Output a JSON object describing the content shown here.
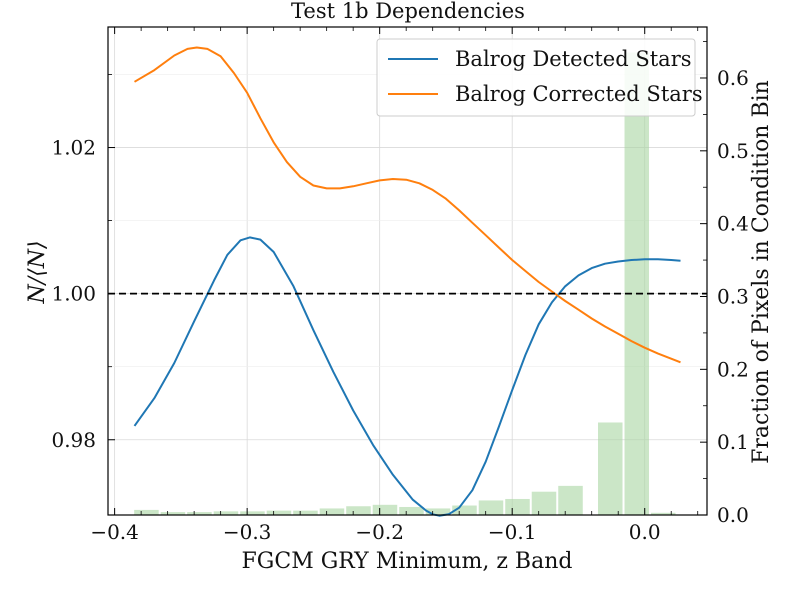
{
  "chart_data": {
    "type": "line",
    "title": "Test 1b Dependencies",
    "xlabel": "FGCM GRY Minimum, z Band",
    "ylabel": "N/⟨N⟩",
    "ylabel_right": "Fraction of Pixels in Condition Bin",
    "xlim": [
      -0.405,
      0.047
    ],
    "ylim": [
      0.9697,
      1.0365
    ],
    "ylim_right": [
      0.0,
      0.67
    ],
    "x_ticks": [
      -0.4,
      -0.3,
      -0.2,
      -0.1,
      0.0
    ],
    "x_tick_labels": [
      "−0.4",
      "−0.3",
      "−0.2",
      "−0.1",
      "0.0"
    ],
    "y_ticks": [
      0.98,
      1.0,
      1.02
    ],
    "y_tick_labels": [
      "0.98",
      "1.00",
      "1.02"
    ],
    "y_minor_ticks": [
      0.99,
      1.01,
      1.03
    ],
    "y_right_ticks": [
      0.0,
      0.1,
      0.2,
      0.3,
      0.4,
      0.5,
      0.6
    ],
    "y_right_tick_labels": [
      "0.0",
      "0.1",
      "0.2",
      "0.3",
      "0.4",
      "0.5",
      "0.6"
    ],
    "grid": true,
    "legend_position": "top-right",
    "reference_line": {
      "y": 1.0,
      "style": "dashed",
      "color": "#000000"
    },
    "series": [
      {
        "name": "Balrog Detected Stars",
        "color": "#1f77b4",
        "x": [
          -0.385,
          -0.37,
          -0.355,
          -0.34,
          -0.325,
          -0.315,
          -0.305,
          -0.298,
          -0.29,
          -0.28,
          -0.265,
          -0.25,
          -0.235,
          -0.22,
          -0.205,
          -0.19,
          -0.175,
          -0.165,
          -0.16,
          -0.155,
          -0.148,
          -0.14,
          -0.13,
          -0.12,
          -0.11,
          -0.1,
          -0.09,
          -0.08,
          -0.07,
          -0.06,
          -0.05,
          -0.04,
          -0.03,
          -0.02,
          -0.01,
          0.0,
          0.01,
          0.02,
          0.027
        ],
        "values": [
          0.9819,
          0.9857,
          0.9905,
          0.9962,
          1.0018,
          1.0053,
          1.0073,
          1.0077,
          1.0074,
          1.0057,
          1.001,
          0.995,
          0.9893,
          0.984,
          0.9793,
          0.9752,
          0.9718,
          0.9703,
          0.9698,
          0.9696,
          0.9698,
          0.9707,
          0.9731,
          0.977,
          0.9818,
          0.9868,
          0.9916,
          0.9958,
          0.9988,
          1.001,
          1.0025,
          1.0035,
          1.0041,
          1.0044,
          1.0046,
          1.0047,
          1.0047,
          1.0046,
          1.0045
        ]
      },
      {
        "name": "Balrog Corrected Stars",
        "color": "#ff7f0e",
        "x": [
          -0.385,
          -0.37,
          -0.355,
          -0.345,
          -0.338,
          -0.33,
          -0.32,
          -0.31,
          -0.3,
          -0.29,
          -0.28,
          -0.27,
          -0.26,
          -0.25,
          -0.24,
          -0.23,
          -0.22,
          -0.21,
          -0.2,
          -0.19,
          -0.18,
          -0.17,
          -0.16,
          -0.15,
          -0.14,
          -0.13,
          -0.12,
          -0.11,
          -0.1,
          -0.09,
          -0.08,
          -0.07,
          -0.06,
          -0.05,
          -0.04,
          -0.03,
          -0.02,
          -0.01,
          0.0,
          0.01,
          0.02,
          0.027
        ],
        "values": [
          1.029,
          1.0306,
          1.0326,
          1.0335,
          1.0337,
          1.0335,
          1.0325,
          1.0302,
          1.0275,
          1.024,
          1.0207,
          1.018,
          1.016,
          1.0148,
          1.0144,
          1.0144,
          1.0147,
          1.0151,
          1.0155,
          1.0157,
          1.0156,
          1.0151,
          1.0142,
          1.013,
          1.0114,
          1.0097,
          1.008,
          1.0063,
          1.0046,
          1.0031,
          1.0016,
          1.0003,
          0.999,
          0.9978,
          0.9966,
          0.9955,
          0.9945,
          0.9935,
          0.9926,
          0.9918,
          0.9911,
          0.9906
        ]
      }
    ],
    "histogram": {
      "color": "#a8d5a2",
      "bins": [
        {
          "x": -0.376,
          "value": 0.007
        },
        {
          "x": -0.356,
          "value": 0.004
        },
        {
          "x": -0.336,
          "value": 0.004
        },
        {
          "x": -0.316,
          "value": 0.005
        },
        {
          "x": -0.296,
          "value": 0.005
        },
        {
          "x": -0.276,
          "value": 0.006
        },
        {
          "x": -0.256,
          "value": 0.006
        },
        {
          "x": -0.236,
          "value": 0.009
        },
        {
          "x": -0.216,
          "value": 0.012
        },
        {
          "x": -0.196,
          "value": 0.014
        },
        {
          "x": -0.176,
          "value": 0.011
        },
        {
          "x": -0.156,
          "value": 0.009
        },
        {
          "x": -0.136,
          "value": 0.013
        },
        {
          "x": -0.116,
          "value": 0.02
        },
        {
          "x": -0.096,
          "value": 0.022
        },
        {
          "x": -0.076,
          "value": 0.032
        },
        {
          "x": -0.056,
          "value": 0.04
        },
        {
          "x": -0.026,
          "value": 0.127
        },
        {
          "x": -0.006,
          "value": 0.635
        },
        {
          "x": 0.014,
          "value": 0.003
        }
      ],
      "bin_width": 0.0185
    }
  }
}
